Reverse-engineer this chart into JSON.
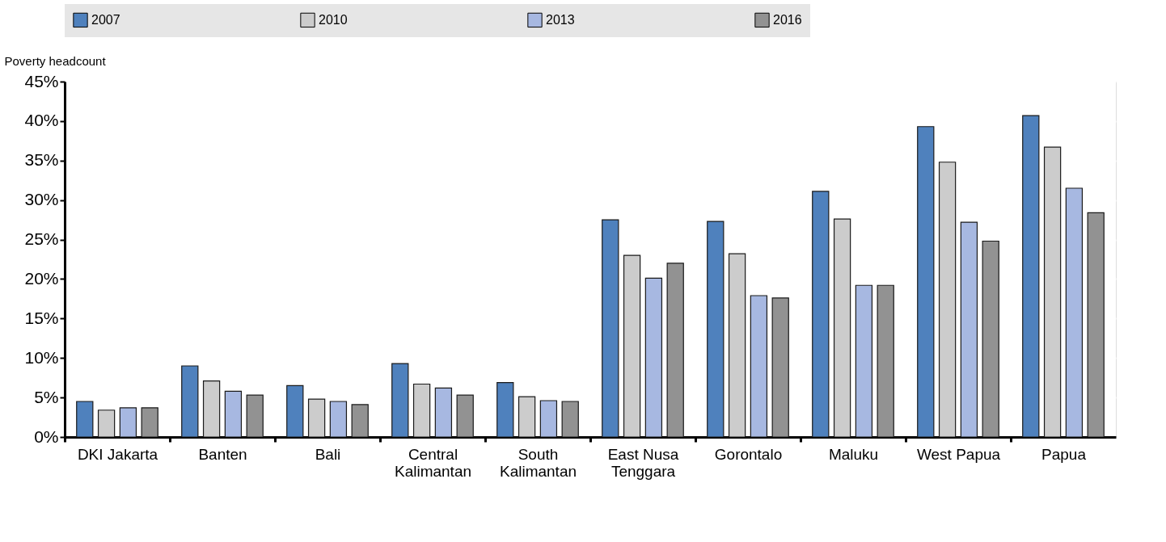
{
  "chart_data": {
    "type": "bar",
    "ylabel": "Poverty headcount",
    "categories": [
      "DKI Jakarta",
      "Banten",
      "Bali",
      "Central Kalimantan",
      "South Kalimantan",
      "East Nusa Tenggara",
      "Gorontalo",
      "Maluku",
      "West Papua",
      "Papua"
    ],
    "series": [
      {
        "name": "2007",
        "color": "#4f81bd",
        "values": [
          4.5,
          9.0,
          6.5,
          9.3,
          6.9,
          27.5,
          27.3,
          31.1,
          39.3,
          40.7
        ]
      },
      {
        "name": "2010",
        "color": "#cccccc",
        "values": [
          3.4,
          7.1,
          4.8,
          6.7,
          5.1,
          23.0,
          23.2,
          27.6,
          34.8,
          36.7
        ]
      },
      {
        "name": "2013",
        "color": "#a7b8e1",
        "values": [
          3.7,
          5.8,
          4.5,
          6.2,
          4.6,
          20.1,
          17.9,
          19.2,
          27.2,
          31.5
        ]
      },
      {
        "name": "2016",
        "color": "#929292",
        "values": [
          3.7,
          5.3,
          4.1,
          5.3,
          4.5,
          22.0,
          17.6,
          19.2,
          24.8,
          28.4
        ]
      }
    ],
    "ylim": [
      0,
      45
    ],
    "yticks": [
      {
        "value": 0,
        "label": "0%"
      },
      {
        "value": 5,
        "label": "5%"
      },
      {
        "value": 10,
        "label": "10%"
      },
      {
        "value": 15,
        "label": "15%"
      },
      {
        "value": 20,
        "label": "20%"
      },
      {
        "value": 25,
        "label": "25%"
      },
      {
        "value": 30,
        "label": "30%"
      },
      {
        "value": 35,
        "label": "35%"
      },
      {
        "value": 40,
        "label": "40%"
      },
      {
        "value": 45,
        "label": "45%"
      }
    ],
    "grid": true,
    "legend": "top"
  }
}
